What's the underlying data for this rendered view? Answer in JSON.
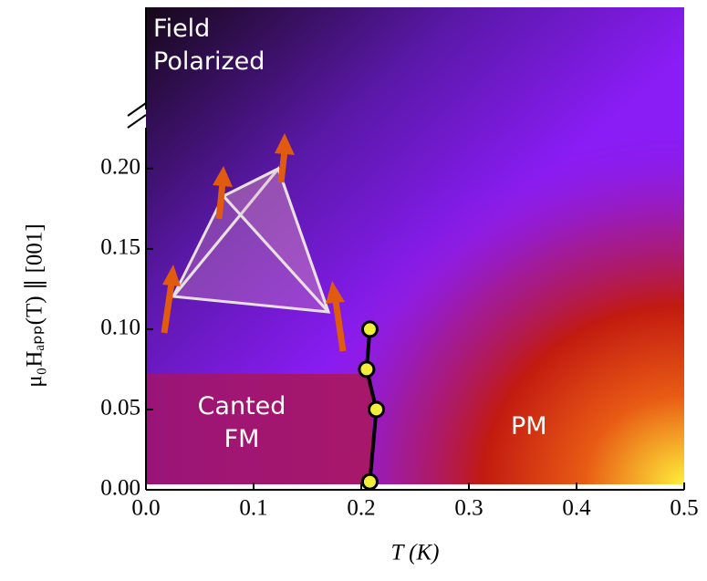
{
  "chart_data": {
    "type": "scatter",
    "x_label": "T (K)",
    "y_label": "μ₀Hₐₚₚ(T) ∥ [001]",
    "annotations": [
      "Field Polarized",
      "Canted FM",
      "PM"
    ],
    "x": [
      0.208,
      0.214,
      0.205,
      0.208
    ],
    "values": [
      0.005,
      0.05,
      0.075,
      0.1
    ],
    "color": "#f3ee3a",
    "xlim": [
      0,
      0.5
    ],
    "xticks": [
      {
        "value": 0,
        "label": "0.0"
      },
      0.1,
      0.2,
      0.3,
      0.4,
      0.5
    ],
    "ylim": [
      0,
      0.23
    ],
    "yticks": [
      {
        "value": 0,
        "label": "0.00"
      },
      0.05,
      {
        "value": 0.1,
        "label": "0.10"
      },
      0.15,
      {
        "value": 0.2,
        "label": "0.20"
      }
    ]
  }
}
